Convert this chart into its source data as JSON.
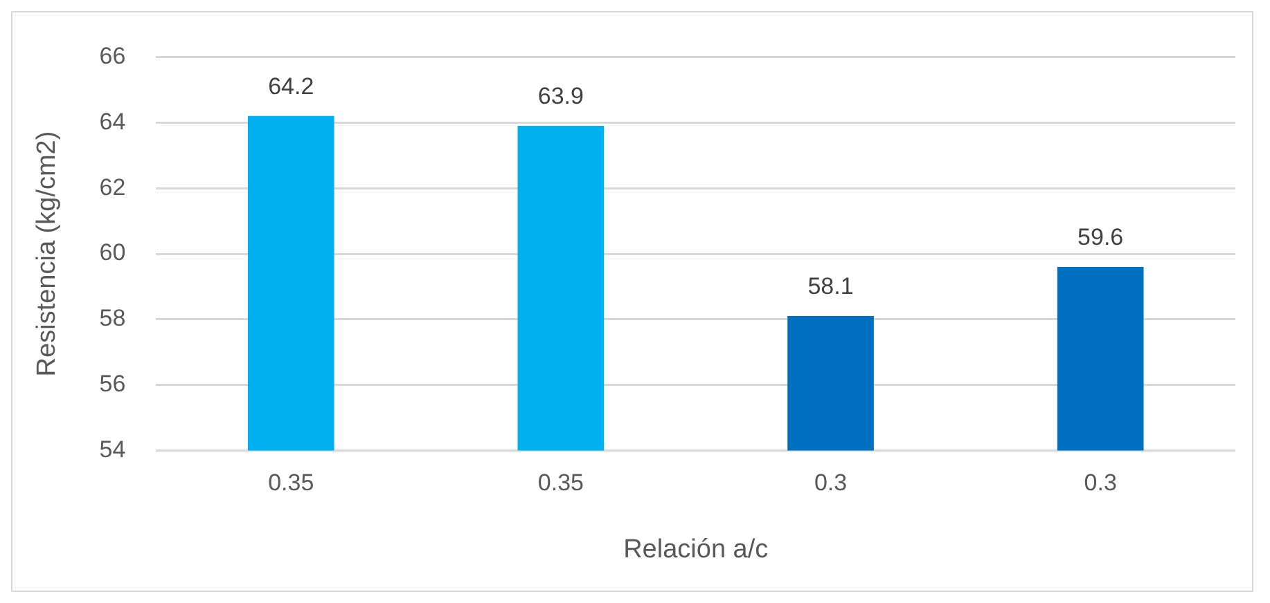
{
  "chart_data": {
    "type": "bar",
    "xlabel": "Relación a/c",
    "ylabel": "Resistencia (kg/cm2)",
    "categories": [
      "0.35",
      "0.35",
      "0.3",
      "0.3"
    ],
    "values": [
      64.2,
      63.9,
      58.1,
      59.6
    ],
    "colors": [
      "#00b0f0",
      "#00b0f0",
      "#0070c0",
      "#0070c0"
    ],
    "ylim": [
      54,
      66
    ],
    "yticks": [
      54,
      56,
      58,
      60,
      62,
      64,
      66
    ],
    "grid": "y",
    "data_labels": true,
    "legend": false
  }
}
